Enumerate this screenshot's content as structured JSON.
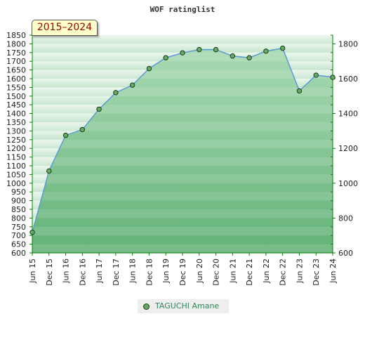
{
  "chart_data": {
    "type": "area",
    "title": "WOF ratinglist",
    "period_label": "2015–2024",
    "categories": [
      "Jun 15",
      "Dec 15",
      "Jun 16",
      "Dec 16",
      "Jun 17",
      "Dec 17",
      "Jun 18",
      "Dec 18",
      "Jun 19",
      "Dec 19",
      "Jun 20",
      "Dec 20",
      "Jun 21",
      "Dec 21",
      "Jun 22",
      "Dec 22",
      "Jun 23",
      "Dec 23",
      "Jun 24"
    ],
    "series": [
      {
        "name": "TAGUCHI Amane",
        "values": [
          718,
          1070,
          1275,
          1308,
          1425,
          1520,
          1563,
          1658,
          1720,
          1748,
          1767,
          1767,
          1730,
          1720,
          1758,
          1775,
          1530,
          1620,
          1608
        ]
      }
    ],
    "y_left": {
      "ylim": [
        600,
        1850
      ],
      "ticks": [
        600,
        650,
        700,
        750,
        800,
        850,
        900,
        950,
        1000,
        1050,
        1100,
        1150,
        1200,
        1250,
        1300,
        1350,
        1400,
        1450,
        1500,
        1550,
        1600,
        1650,
        1700,
        1750,
        1800,
        1850
      ]
    },
    "y_right": {
      "ylim": [
        600,
        1850
      ],
      "ticks": [
        600,
        800,
        1000,
        1200,
        1400,
        1600,
        1800
      ]
    },
    "legend_placement": "bottom-center",
    "colors": {
      "area_dark": "#7dbf8c",
      "area_light": "#d8eedd",
      "line": "#5b9bd5",
      "marker": "#66aa66",
      "axis": "#008000"
    }
  }
}
